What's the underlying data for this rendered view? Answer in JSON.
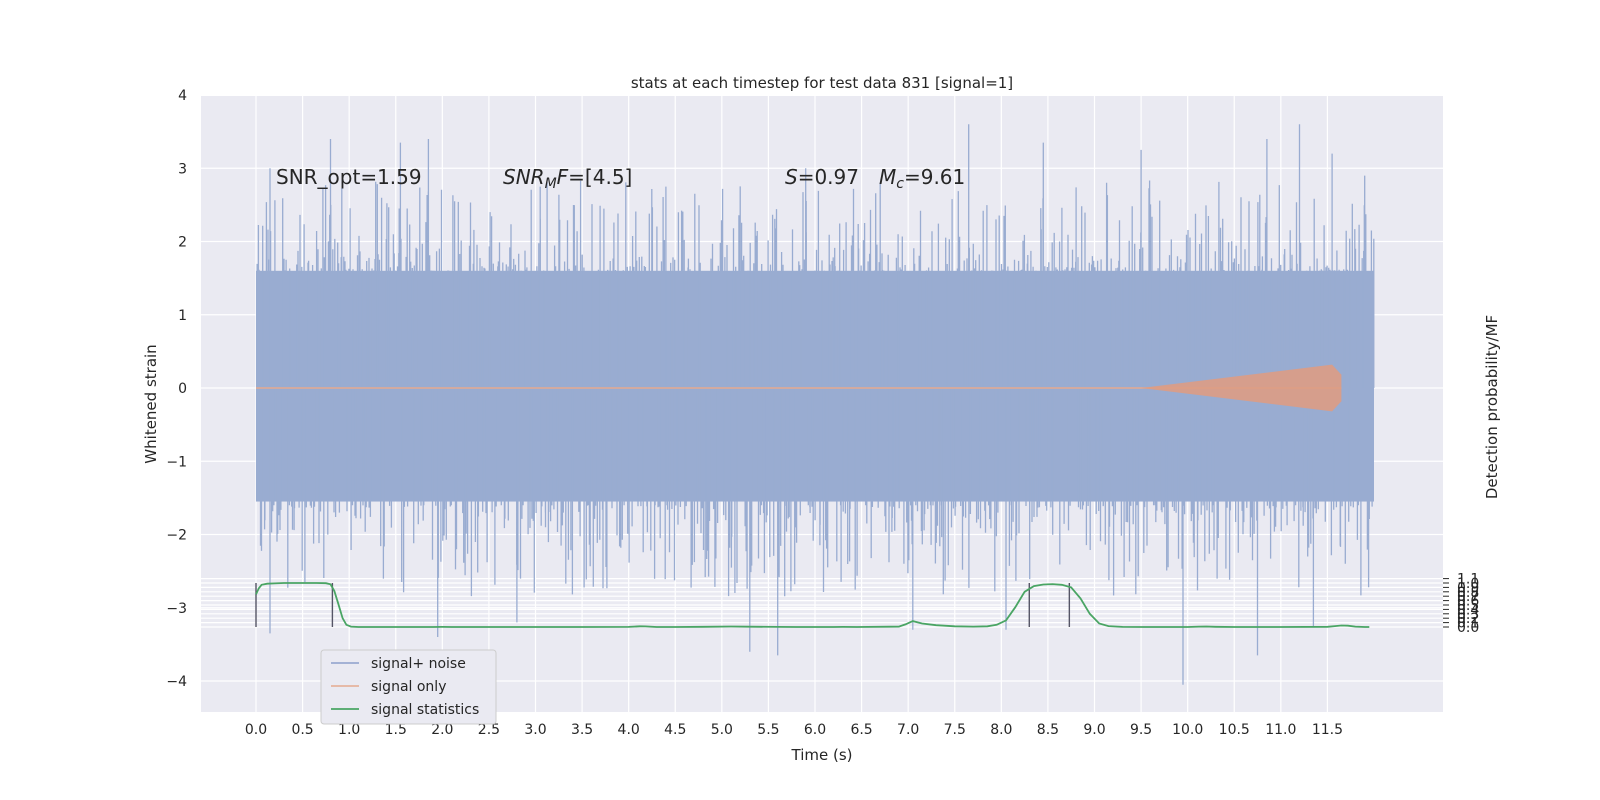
{
  "chart_data": {
    "type": "line",
    "title": "stats at each timestep for test data 831 [signal=1]",
    "xlabel": "Time (s)",
    "ylabel": "Whitened strain",
    "y2label": "Detection probability/MF",
    "xlim": [
      -0.5,
      12.65
    ],
    "ylim": [
      -4.45,
      4.0
    ],
    "y2lim": [
      -0.19,
      1.2
    ],
    "x_ticks": [
      "0.0",
      "0.5",
      "1.0",
      "1.5",
      "2.0",
      "2.5",
      "3.0",
      "3.5",
      "4.0",
      "4.5",
      "5.0",
      "5.5",
      "6.0",
      "6.5",
      "7.0",
      "7.5",
      "8.0",
      "8.5",
      "9.0",
      "9.5",
      "10.0",
      "10.5",
      "11.0",
      "11.5"
    ],
    "y_ticks": [
      "4",
      "3",
      "2",
      "1",
      "0",
      "−1",
      "−2",
      "−3",
      "−4"
    ],
    "y2_ticks": [
      "1.1",
      "1.0",
      "0.9",
      "0.8",
      "0.7",
      "0.6",
      "0.5",
      "0.4",
      "0.3",
      "0.2",
      "0.1",
      "0.0"
    ],
    "grid": true,
    "legend_position": "lower-left",
    "annotations": {
      "snr_opt": "SNR_opt=1.59",
      "snr_mf_sym": "SNR",
      "snr_mf_sub": "M",
      "snr_mf_f": "F",
      "snr_mf_val": "=[4.5]",
      "s_sym": "S",
      "s_val": "=0.97",
      "mc_sym": "M",
      "mc_sub": "c",
      "mc_val": "=9.61"
    },
    "vertical_lines": [
      0.0,
      0.82,
      8.3,
      8.73
    ],
    "series": [
      {
        "name": "signal+ noise",
        "color": "#8da0cb",
        "noise_band": [
          -1.55,
          1.6
        ],
        "x_range": [
          0.0,
          12.0
        ],
        "peaks": [
          {
            "x": 0.15,
            "y": 3.0
          },
          {
            "x": 0.8,
            "y": 3.4
          },
          {
            "x": 1.55,
            "y": 3.35
          },
          {
            "x": 1.85,
            "y": 3.4
          },
          {
            "x": 3.05,
            "y": 2.75
          },
          {
            "x": 4.4,
            "y": 2.75
          },
          {
            "x": 5.9,
            "y": 3.0
          },
          {
            "x": 7.65,
            "y": 3.6
          },
          {
            "x": 8.45,
            "y": 3.35
          },
          {
            "x": 9.5,
            "y": 3.25
          },
          {
            "x": 10.85,
            "y": 3.4
          },
          {
            "x": 11.2,
            "y": 3.6
          },
          {
            "x": 11.55,
            "y": 3.2
          },
          {
            "x": 11.9,
            "y": 2.9
          },
          {
            "x": 0.15,
            "y": -3.35
          },
          {
            "x": 1.95,
            "y": -3.4
          },
          {
            "x": 2.8,
            "y": -3.2
          },
          {
            "x": 5.3,
            "y": -3.6
          },
          {
            "x": 5.6,
            "y": -3.65
          },
          {
            "x": 7.05,
            "y": -3.3
          },
          {
            "x": 8.05,
            "y": -3.3
          },
          {
            "x": 9.95,
            "y": -4.05
          },
          {
            "x": 10.75,
            "y": -3.65
          },
          {
            "x": 11.35,
            "y": -3.25
          }
        ]
      },
      {
        "name": "signal only",
        "color": "#e5a990",
        "x_range": [
          0.0,
          11.65
        ]
      },
      {
        "name": "signal statistics",
        "color": "#4aa564",
        "points": [
          [
            0.0,
            0.74
          ],
          [
            0.03,
            0.88
          ],
          [
            0.06,
            0.96
          ],
          [
            0.12,
            0.985
          ],
          [
            0.2,
            0.99
          ],
          [
            0.3,
            1.0
          ],
          [
            0.5,
            1.0
          ],
          [
            0.65,
            1.0
          ],
          [
            0.75,
            0.995
          ],
          [
            0.8,
            0.97
          ],
          [
            0.84,
            0.82
          ],
          [
            0.88,
            0.55
          ],
          [
            0.93,
            0.2
          ],
          [
            0.97,
            0.05
          ],
          [
            1.02,
            0.01
          ],
          [
            1.1,
            0.0
          ],
          [
            1.5,
            0.0
          ],
          [
            1.9,
            0.0
          ],
          [
            2.0,
            0.003
          ],
          [
            2.1,
            0.0
          ],
          [
            2.5,
            0.0
          ],
          [
            3.0,
            0.0
          ],
          [
            3.5,
            0.0
          ],
          [
            4.0,
            0.002
          ],
          [
            4.12,
            0.016
          ],
          [
            4.18,
            0.014
          ],
          [
            4.3,
            0.001
          ],
          [
            4.5,
            0.0
          ],
          [
            4.8,
            0.004
          ],
          [
            5.1,
            0.011
          ],
          [
            5.3,
            0.006
          ],
          [
            5.6,
            0.002
          ],
          [
            5.8,
            0.0
          ],
          [
            6.2,
            0.0
          ],
          [
            6.3,
            0.003
          ],
          [
            6.45,
            0.0
          ],
          [
            6.9,
            0.01
          ],
          [
            6.97,
            0.06
          ],
          [
            7.05,
            0.135
          ],
          [
            7.15,
            0.08
          ],
          [
            7.3,
            0.04
          ],
          [
            7.5,
            0.015
          ],
          [
            7.7,
            0.008
          ],
          [
            7.85,
            0.015
          ],
          [
            7.95,
            0.05
          ],
          [
            8.05,
            0.15
          ],
          [
            8.15,
            0.45
          ],
          [
            8.25,
            0.8
          ],
          [
            8.35,
            0.93
          ],
          [
            8.45,
            0.965
          ],
          [
            8.55,
            0.975
          ],
          [
            8.65,
            0.96
          ],
          [
            8.75,
            0.9
          ],
          [
            8.85,
            0.65
          ],
          [
            8.95,
            0.3
          ],
          [
            9.05,
            0.08
          ],
          [
            9.15,
            0.02
          ],
          [
            9.3,
            0.002
          ],
          [
            9.6,
            0.0
          ],
          [
            10.0,
            0.001
          ],
          [
            10.12,
            0.008
          ],
          [
            10.2,
            0.011
          ],
          [
            10.3,
            0.005
          ],
          [
            10.5,
            0.0
          ],
          [
            11.0,
            0.0
          ],
          [
            11.5,
            0.004
          ],
          [
            11.58,
            0.02
          ],
          [
            11.65,
            0.035
          ],
          [
            11.72,
            0.03
          ],
          [
            11.8,
            0.01
          ],
          [
            11.9,
            0.001
          ],
          [
            11.95,
            0.0
          ]
        ]
      }
    ]
  }
}
